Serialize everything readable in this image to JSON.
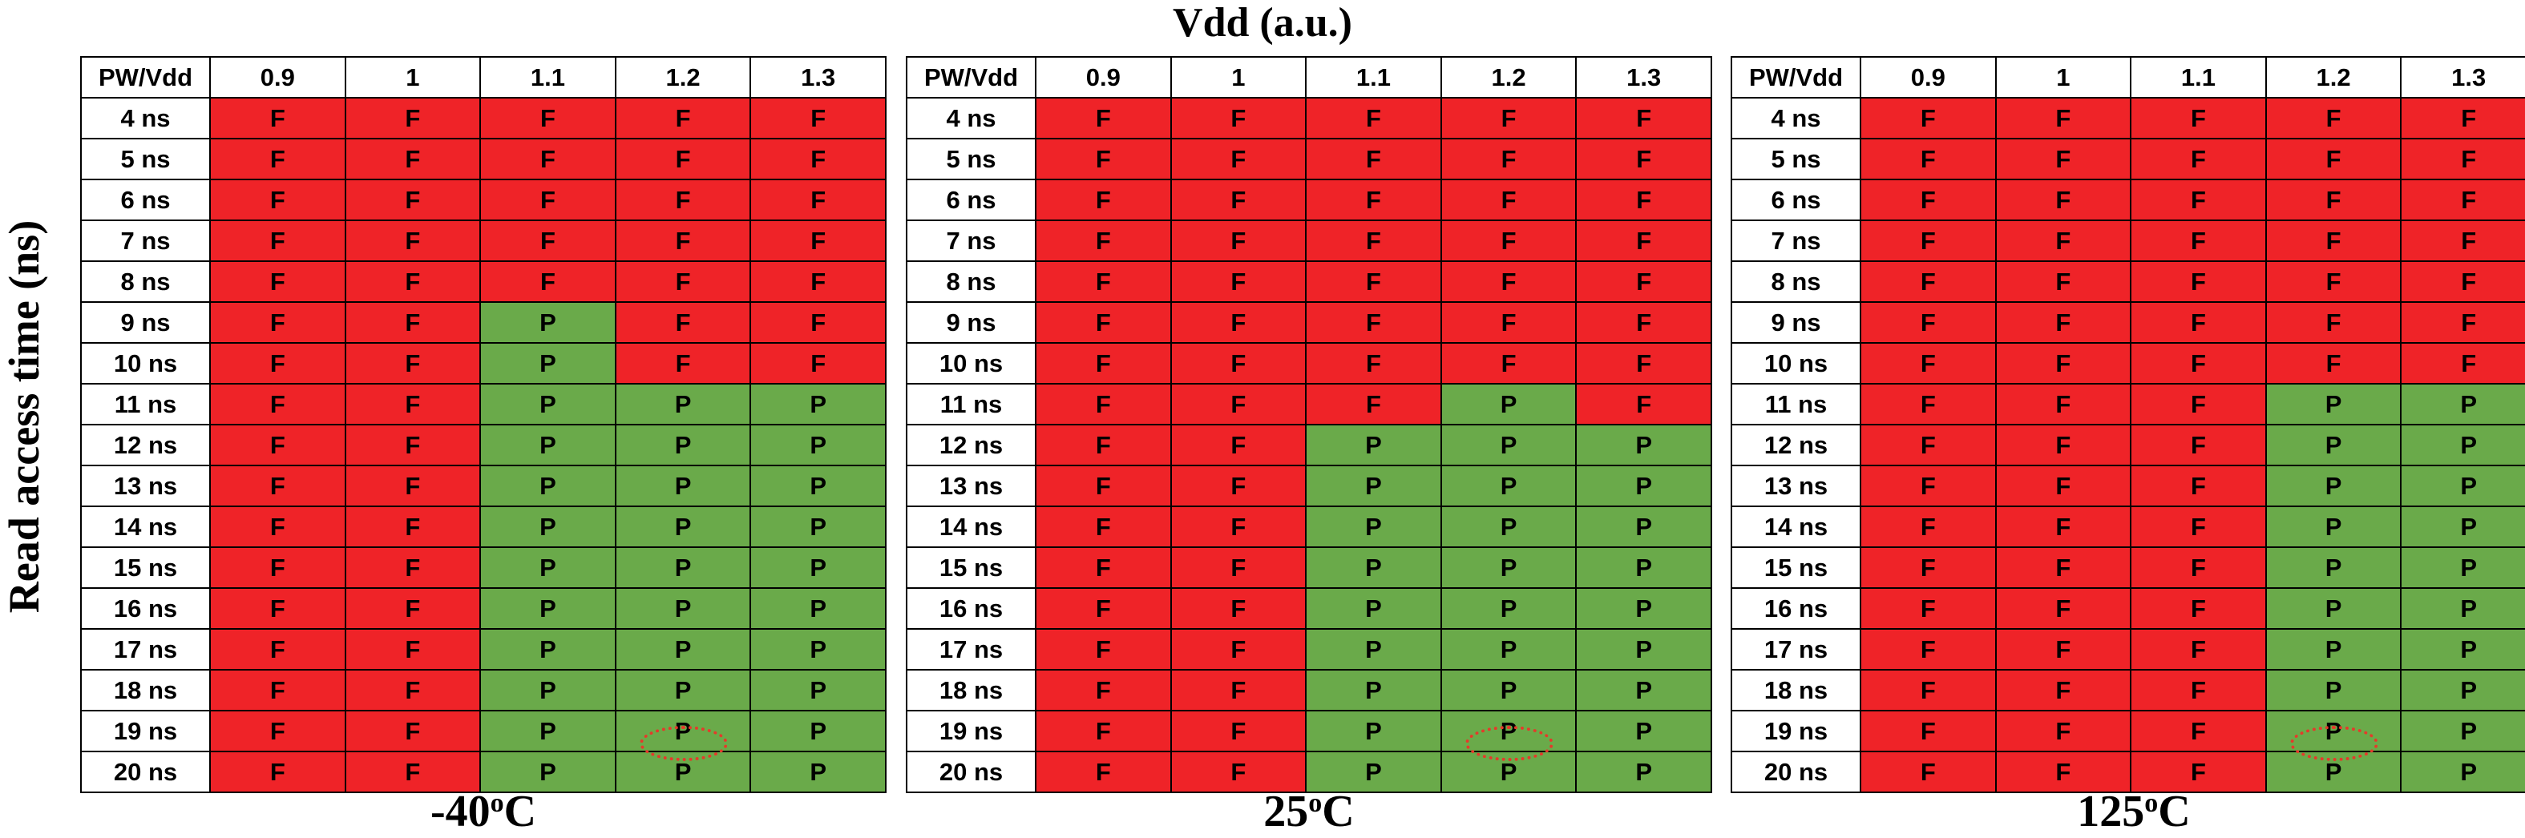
{
  "chart_data": {
    "type": "table",
    "title": "Vdd (a.u.)",
    "ylabel": "Read access time (ns)",
    "corner_label": "PW/Vdd",
    "columns": [
      "0.9",
      "1",
      "1.1",
      "1.2",
      "1.3"
    ],
    "rows": [
      "4 ns",
      "5 ns",
      "6 ns",
      "7 ns",
      "8 ns",
      "9 ns",
      "10 ns",
      "11 ns",
      "12 ns",
      "13 ns",
      "14 ns",
      "15 ns",
      "16 ns",
      "17 ns",
      "18 ns",
      "19 ns",
      "20 ns"
    ],
    "colors": {
      "F": "#ef2328",
      "P": "#6aaa4a",
      "marker": "#e53a2a"
    },
    "panels": [
      {
        "temp_value": "-40",
        "temp_sup": "o",
        "temp_unit": "C",
        "cells": [
          [
            "F",
            "F",
            "F",
            "F",
            "F"
          ],
          [
            "F",
            "F",
            "F",
            "F",
            "F"
          ],
          [
            "F",
            "F",
            "F",
            "F",
            "F"
          ],
          [
            "F",
            "F",
            "F",
            "F",
            "F"
          ],
          [
            "F",
            "F",
            "F",
            "F",
            "F"
          ],
          [
            "F",
            "F",
            "P",
            "F",
            "F"
          ],
          [
            "F",
            "F",
            "P",
            "F",
            "F"
          ],
          [
            "F",
            "F",
            "P",
            "P",
            "P"
          ],
          [
            "F",
            "F",
            "P",
            "P",
            "P"
          ],
          [
            "F",
            "F",
            "P",
            "P",
            "P"
          ],
          [
            "F",
            "F",
            "P",
            "P",
            "P"
          ],
          [
            "F",
            "F",
            "P",
            "P",
            "P"
          ],
          [
            "F",
            "F",
            "P",
            "P",
            "P"
          ],
          [
            "F",
            "F",
            "P",
            "P",
            "P"
          ],
          [
            "F",
            "F",
            "P",
            "P",
            "P"
          ],
          [
            "F",
            "F",
            "P",
            "P",
            "P"
          ],
          [
            "F",
            "F",
            "P",
            "P",
            "P"
          ]
        ],
        "marked_cell": {
          "row": "20 ns",
          "column": "1.2"
        }
      },
      {
        "temp_value": "25",
        "temp_sup": "o",
        "temp_unit": "C",
        "cells": [
          [
            "F",
            "F",
            "F",
            "F",
            "F"
          ],
          [
            "F",
            "F",
            "F",
            "F",
            "F"
          ],
          [
            "F",
            "F",
            "F",
            "F",
            "F"
          ],
          [
            "F",
            "F",
            "F",
            "F",
            "F"
          ],
          [
            "F",
            "F",
            "F",
            "F",
            "F"
          ],
          [
            "F",
            "F",
            "F",
            "F",
            "F"
          ],
          [
            "F",
            "F",
            "F",
            "F",
            "F"
          ],
          [
            "F",
            "F",
            "F",
            "P",
            "F"
          ],
          [
            "F",
            "F",
            "P",
            "P",
            "P"
          ],
          [
            "F",
            "F",
            "P",
            "P",
            "P"
          ],
          [
            "F",
            "F",
            "P",
            "P",
            "P"
          ],
          [
            "F",
            "F",
            "P",
            "P",
            "P"
          ],
          [
            "F",
            "F",
            "P",
            "P",
            "P"
          ],
          [
            "F",
            "F",
            "P",
            "P",
            "P"
          ],
          [
            "F",
            "F",
            "P",
            "P",
            "P"
          ],
          [
            "F",
            "F",
            "P",
            "P",
            "P"
          ],
          [
            "F",
            "F",
            "P",
            "P",
            "P"
          ]
        ],
        "marked_cell": {
          "row": "20 ns",
          "column": "1.2"
        }
      },
      {
        "temp_value": "125",
        "temp_sup": "o",
        "temp_unit": "C",
        "cells": [
          [
            "F",
            "F",
            "F",
            "F",
            "F"
          ],
          [
            "F",
            "F",
            "F",
            "F",
            "F"
          ],
          [
            "F",
            "F",
            "F",
            "F",
            "F"
          ],
          [
            "F",
            "F",
            "F",
            "F",
            "F"
          ],
          [
            "F",
            "F",
            "F",
            "F",
            "F"
          ],
          [
            "F",
            "F",
            "F",
            "F",
            "F"
          ],
          [
            "F",
            "F",
            "F",
            "F",
            "F"
          ],
          [
            "F",
            "F",
            "F",
            "P",
            "P"
          ],
          [
            "F",
            "F",
            "F",
            "P",
            "P"
          ],
          [
            "F",
            "F",
            "F",
            "P",
            "P"
          ],
          [
            "F",
            "F",
            "F",
            "P",
            "P"
          ],
          [
            "F",
            "F",
            "F",
            "P",
            "P"
          ],
          [
            "F",
            "F",
            "F",
            "P",
            "P"
          ],
          [
            "F",
            "F",
            "F",
            "P",
            "P"
          ],
          [
            "F",
            "F",
            "F",
            "P",
            "P"
          ],
          [
            "F",
            "F",
            "F",
            "P",
            "P"
          ],
          [
            "F",
            "F",
            "F",
            "P",
            "P"
          ]
        ],
        "marked_cell": {
          "row": "20 ns",
          "column": "1.2"
        }
      }
    ]
  }
}
